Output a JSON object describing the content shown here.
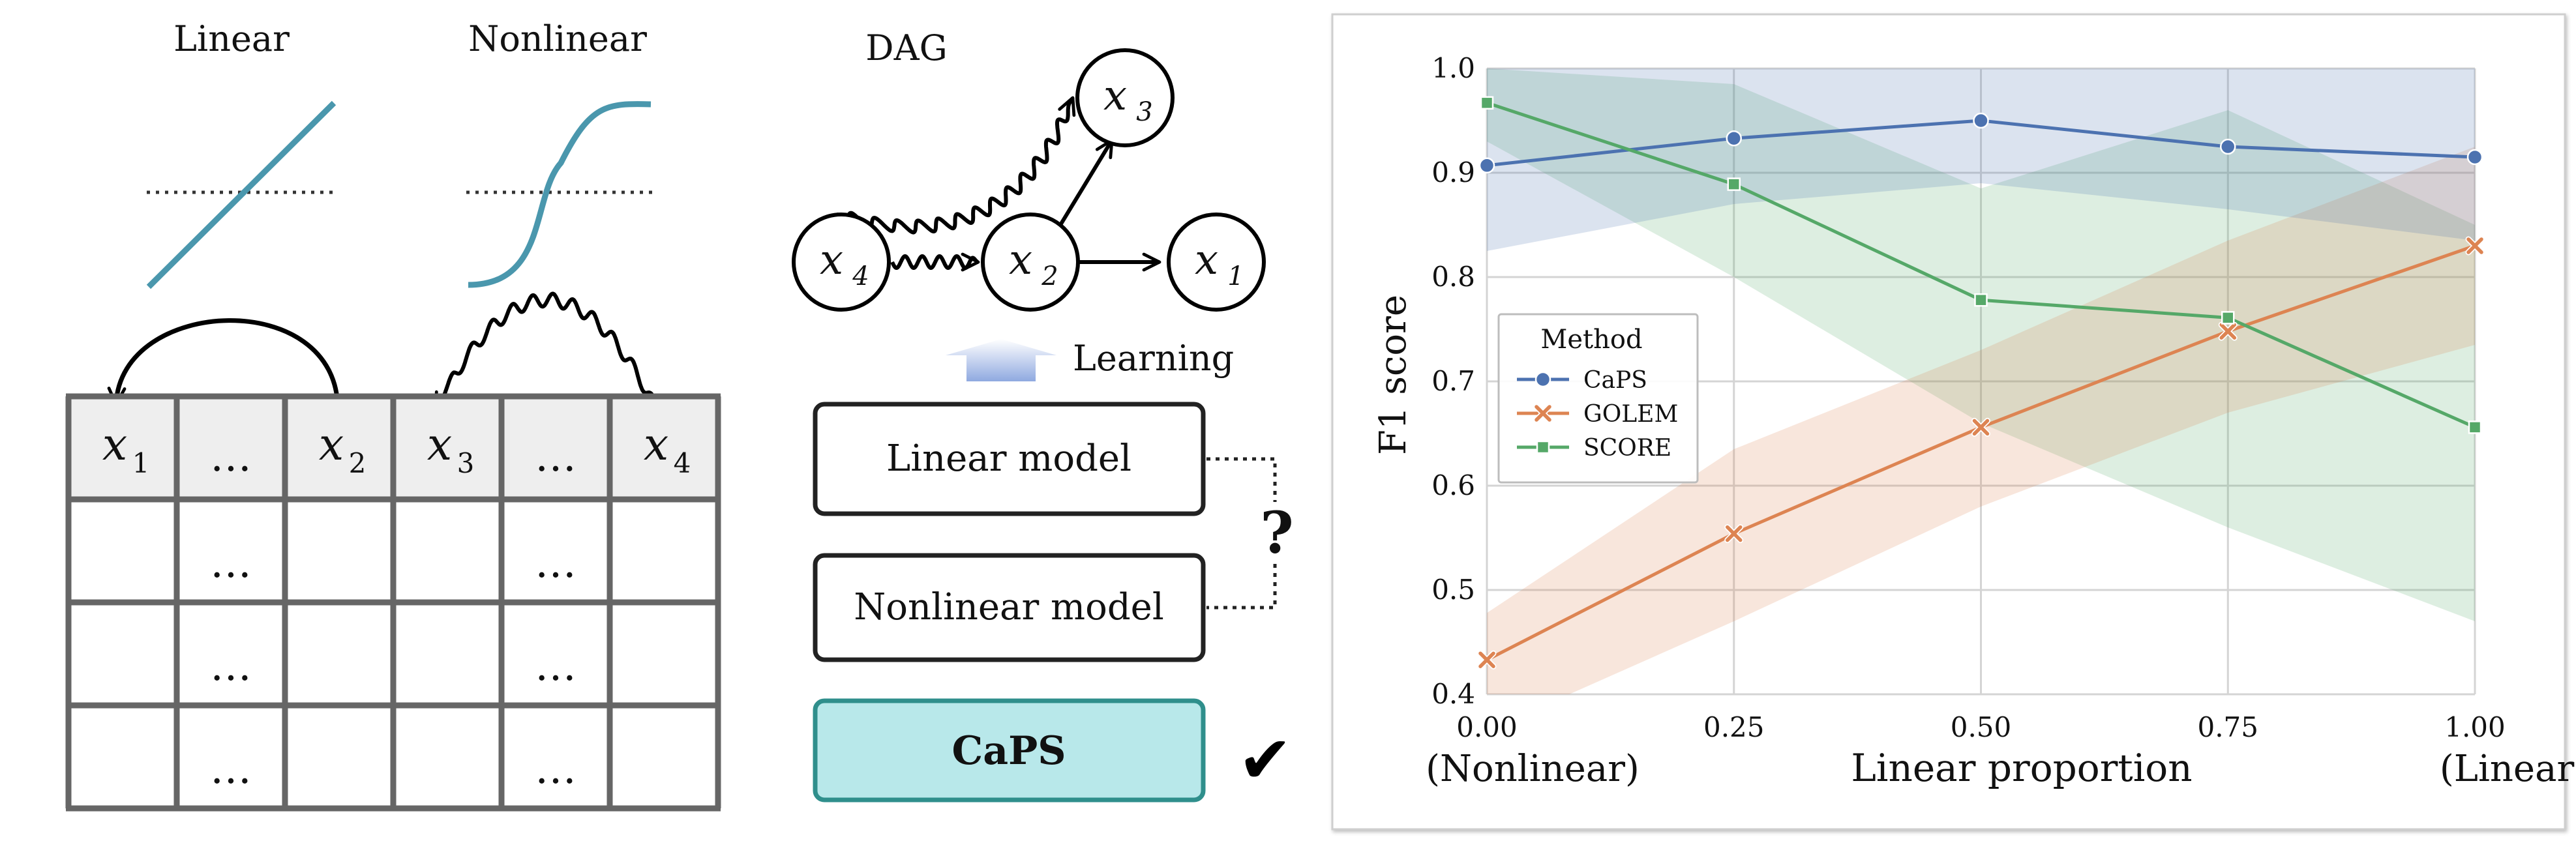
{
  "left_panel": {
    "linear_label": "Linear",
    "nonlinear_label": "Nonlinear",
    "table": {
      "header": [
        {
          "var": "x",
          "sub": "1"
        },
        {
          "ellipsis": "…"
        },
        {
          "var": "x",
          "sub": "2"
        },
        {
          "var": "x",
          "sub": "3"
        },
        {
          "ellipsis": "…"
        },
        {
          "var": "x",
          "sub": "4"
        }
      ],
      "ellipsis": "…",
      "ellipsis_columns": [
        1,
        4
      ],
      "body_rows": 3
    }
  },
  "middle_panel": {
    "dag_label": "DAG",
    "nodes": [
      {
        "id": "x3",
        "var": "x",
        "sub": "3"
      },
      {
        "id": "x4",
        "var": "x",
        "sub": "4"
      },
      {
        "id": "x2",
        "var": "x",
        "sub": "2"
      },
      {
        "id": "x1",
        "var": "x",
        "sub": "1"
      }
    ],
    "learning_label": "Learning",
    "linear_model_label": "Linear model",
    "nonlinear_model_label": "Nonlinear model",
    "question_mark": "?",
    "caps_label": "CaPS",
    "check_mark": "✔",
    "colors": {
      "caps_fill": "#b8e8ea",
      "caps_border": "#2f8f8c",
      "arrow_gradient_top": "#ffffff",
      "arrow_gradient_bottom": "#8fa9e0",
      "curve": "#4a97ad"
    }
  },
  "chart_data": {
    "type": "line",
    "ylabel": "F1 score",
    "xlabel": "Linear proportion",
    "xlabel_left": "(Nonlinear)",
    "xlabel_right": "(Linear)",
    "xlim": [
      0,
      1
    ],
    "ylim": [
      0.4,
      1.0
    ],
    "x": [
      0.0,
      0.25,
      0.5,
      0.75,
      1.0
    ],
    "x_tick_labels": [
      "0.00",
      "0.25",
      "0.50",
      "0.75",
      "1.00"
    ],
    "y_ticks": [
      0.4,
      0.5,
      0.6,
      0.7,
      0.8,
      0.9,
      1.0
    ],
    "y_tick_labels": [
      "0.4",
      "0.5",
      "0.6",
      "0.7",
      "0.8",
      "0.9",
      "1.0"
    ],
    "grid": true,
    "legend": {
      "title": "Method",
      "placement": "center-left"
    },
    "series": [
      {
        "name": "CaPS",
        "marker": "circle",
        "color": "#4c72b0",
        "values": [
          0.907,
          0.933,
          0.95,
          0.925,
          0.915
        ],
        "lower": [
          0.825,
          0.87,
          0.89,
          0.865,
          0.835
        ],
        "upper": [
          1.0,
          1.0,
          1.0,
          1.0,
          1.0
        ]
      },
      {
        "name": "GOLEM",
        "marker": "x",
        "color": "#dd8452",
        "values": [
          0.433,
          0.554,
          0.656,
          0.748,
          0.83
        ],
        "lower": [
          0.365,
          0.47,
          0.58,
          0.67,
          0.735
        ],
        "upper": [
          0.478,
          0.635,
          0.73,
          0.835,
          0.925
        ]
      },
      {
        "name": "SCORE",
        "marker": "square",
        "color": "#55a868",
        "values": [
          0.967,
          0.889,
          0.778,
          0.761,
          0.656
        ],
        "lower": [
          0.93,
          0.8,
          0.66,
          0.56,
          0.47
        ],
        "upper": [
          1.0,
          0.985,
          0.885,
          0.96,
          0.85
        ]
      }
    ]
  }
}
